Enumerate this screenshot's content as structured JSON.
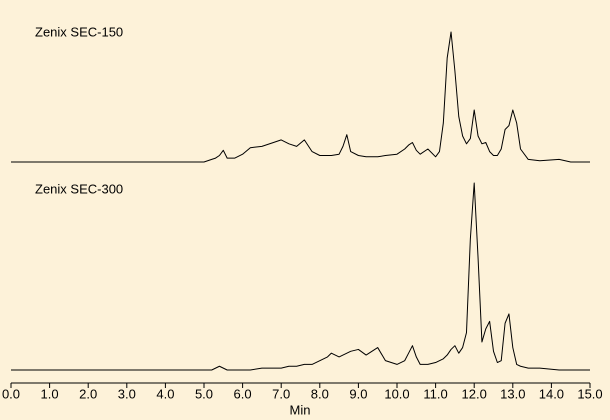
{
  "chart_data": {
    "type": "line",
    "x_label": "Min",
    "color": "#000000",
    "xlim": [
      0,
      15
    ],
    "xticks": [
      {
        "value": 0,
        "label": "0.0"
      },
      {
        "value": 1,
        "label": "1.0"
      },
      {
        "value": 2,
        "label": "2.0"
      },
      {
        "value": 3,
        "label": "3.0"
      },
      {
        "value": 4,
        "label": "4.0"
      },
      {
        "value": 5,
        "label": "5.0"
      },
      {
        "value": 6,
        "label": "6.0"
      },
      {
        "value": 7,
        "label": "7.0"
      },
      {
        "value": 8,
        "label": "8.0"
      },
      {
        "value": 9,
        "label": "9.0"
      },
      {
        "value": 10,
        "label": "10.0"
      },
      {
        "value": 11,
        "label": "11.0"
      },
      {
        "value": 12,
        "label": "12.0"
      },
      {
        "value": 13,
        "label": "13.0"
      },
      {
        "value": 14,
        "label": "14.0"
      },
      {
        "value": 15,
        "label": "15.0"
      }
    ],
    "ylim": [
      0,
      100
    ],
    "x": [
      0,
      5.0,
      5.2,
      5.3,
      5.4,
      5.5,
      5.6,
      5.8,
      6.0,
      6.2,
      6.5,
      6.8,
      7.0,
      7.2,
      7.4,
      7.6,
      7.8,
      8.0,
      8.2,
      8.3,
      8.5,
      8.6,
      8.7,
      8.8,
      9.0,
      9.2,
      9.5,
      9.7,
      10.0,
      10.2,
      10.3,
      10.4,
      10.5,
      10.6,
      10.8,
      11.0,
      11.1,
      11.2,
      11.3,
      11.4,
      11.5,
      11.6,
      11.7,
      11.8,
      11.9,
      12.0,
      12.1,
      12.2,
      12.3,
      12.4,
      12.5,
      12.6,
      12.7,
      12.8,
      12.9,
      13.0,
      13.1,
      13.2,
      13.4,
      13.7,
      14.2,
      14.5,
      15.0
    ],
    "series": [
      {
        "name": "Zenix SEC-150",
        "values": [
          0,
          0,
          2,
          3,
          5,
          9,
          3,
          3,
          6,
          11,
          12,
          15,
          17,
          14,
          12,
          17,
          8,
          5,
          5,
          5,
          6,
          12,
          21,
          8,
          5,
          4,
          4,
          5,
          6,
          10,
          13,
          15,
          9,
          6,
          10,
          4,
          8,
          30,
          80,
          100,
          70,
          35,
          20,
          14,
          18,
          40,
          20,
          14,
          15,
          8,
          5,
          5,
          10,
          25,
          28,
          40,
          30,
          10,
          2,
          1,
          2,
          0,
          0
        ]
      },
      {
        "name": "Zenix SEC-300",
        "values": [
          0,
          0,
          0,
          1,
          2,
          1,
          0,
          0,
          0,
          0,
          1,
          1,
          1,
          2,
          2,
          3,
          3,
          5,
          7,
          9,
          7,
          8,
          9,
          10,
          11,
          8,
          12,
          5,
          3,
          5,
          9,
          13,
          7,
          3,
          3,
          4,
          5,
          6,
          8,
          11,
          13,
          9,
          12,
          20,
          70,
          100,
          60,
          15,
          22,
          26,
          10,
          4,
          5,
          25,
          30,
          12,
          3,
          2,
          1,
          1,
          0,
          0,
          0
        ]
      }
    ]
  }
}
